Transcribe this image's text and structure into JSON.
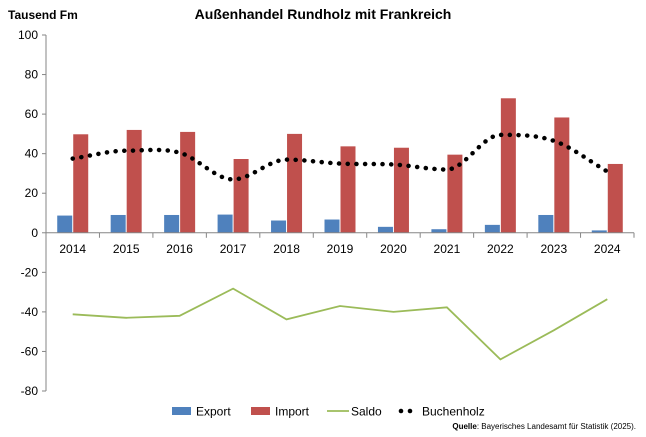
{
  "chart_data": {
    "type": "bar",
    "title": "Außenhandel Rundholz mit Frankreich",
    "ylabel": "Tausend Fm",
    "xlabel": "",
    "ylim": [
      -80,
      100
    ],
    "yticks": [
      -80,
      -60,
      -40,
      -20,
      0,
      20,
      40,
      60,
      80,
      100
    ],
    "categories": [
      "2014",
      "2015",
      "2016",
      "2017",
      "2018",
      "2019",
      "2020",
      "2021",
      "2022",
      "2023",
      "2024"
    ],
    "series": [
      {
        "name": "Export",
        "kind": "bar",
        "color": "#4F81BD",
        "values": [
          8.7,
          9.0,
          9.0,
          9.2,
          6.2,
          6.7,
          3.0,
          1.8,
          4.0,
          9.0,
          1.2
        ]
      },
      {
        "name": "Import",
        "kind": "bar",
        "color": "#C0504D",
        "values": [
          49.8,
          52.0,
          51.0,
          37.3,
          50.0,
          43.7,
          43.0,
          39.5,
          68.0,
          58.3,
          34.8
        ]
      },
      {
        "name": "Saldo",
        "kind": "line",
        "color": "#9BBB59",
        "values": [
          -41.2,
          -43.0,
          -42.0,
          -28.2,
          -43.8,
          -37.0,
          -40.0,
          -37.7,
          -64.0,
          -49.3,
          -33.6
        ]
      },
      {
        "name": "Buchenholz",
        "kind": "dotted-line",
        "color": "#000000",
        "values": [
          37.5,
          41.5,
          40.5,
          27.0,
          37.0,
          35.0,
          34.5,
          32.0,
          49.5,
          46.5,
          31.0
        ]
      }
    ],
    "legend_position": "bottom",
    "grid": false
  },
  "source": {
    "label": "Quelle",
    "text": ": Bayerisches Landesamt für Statistik (2025)."
  }
}
